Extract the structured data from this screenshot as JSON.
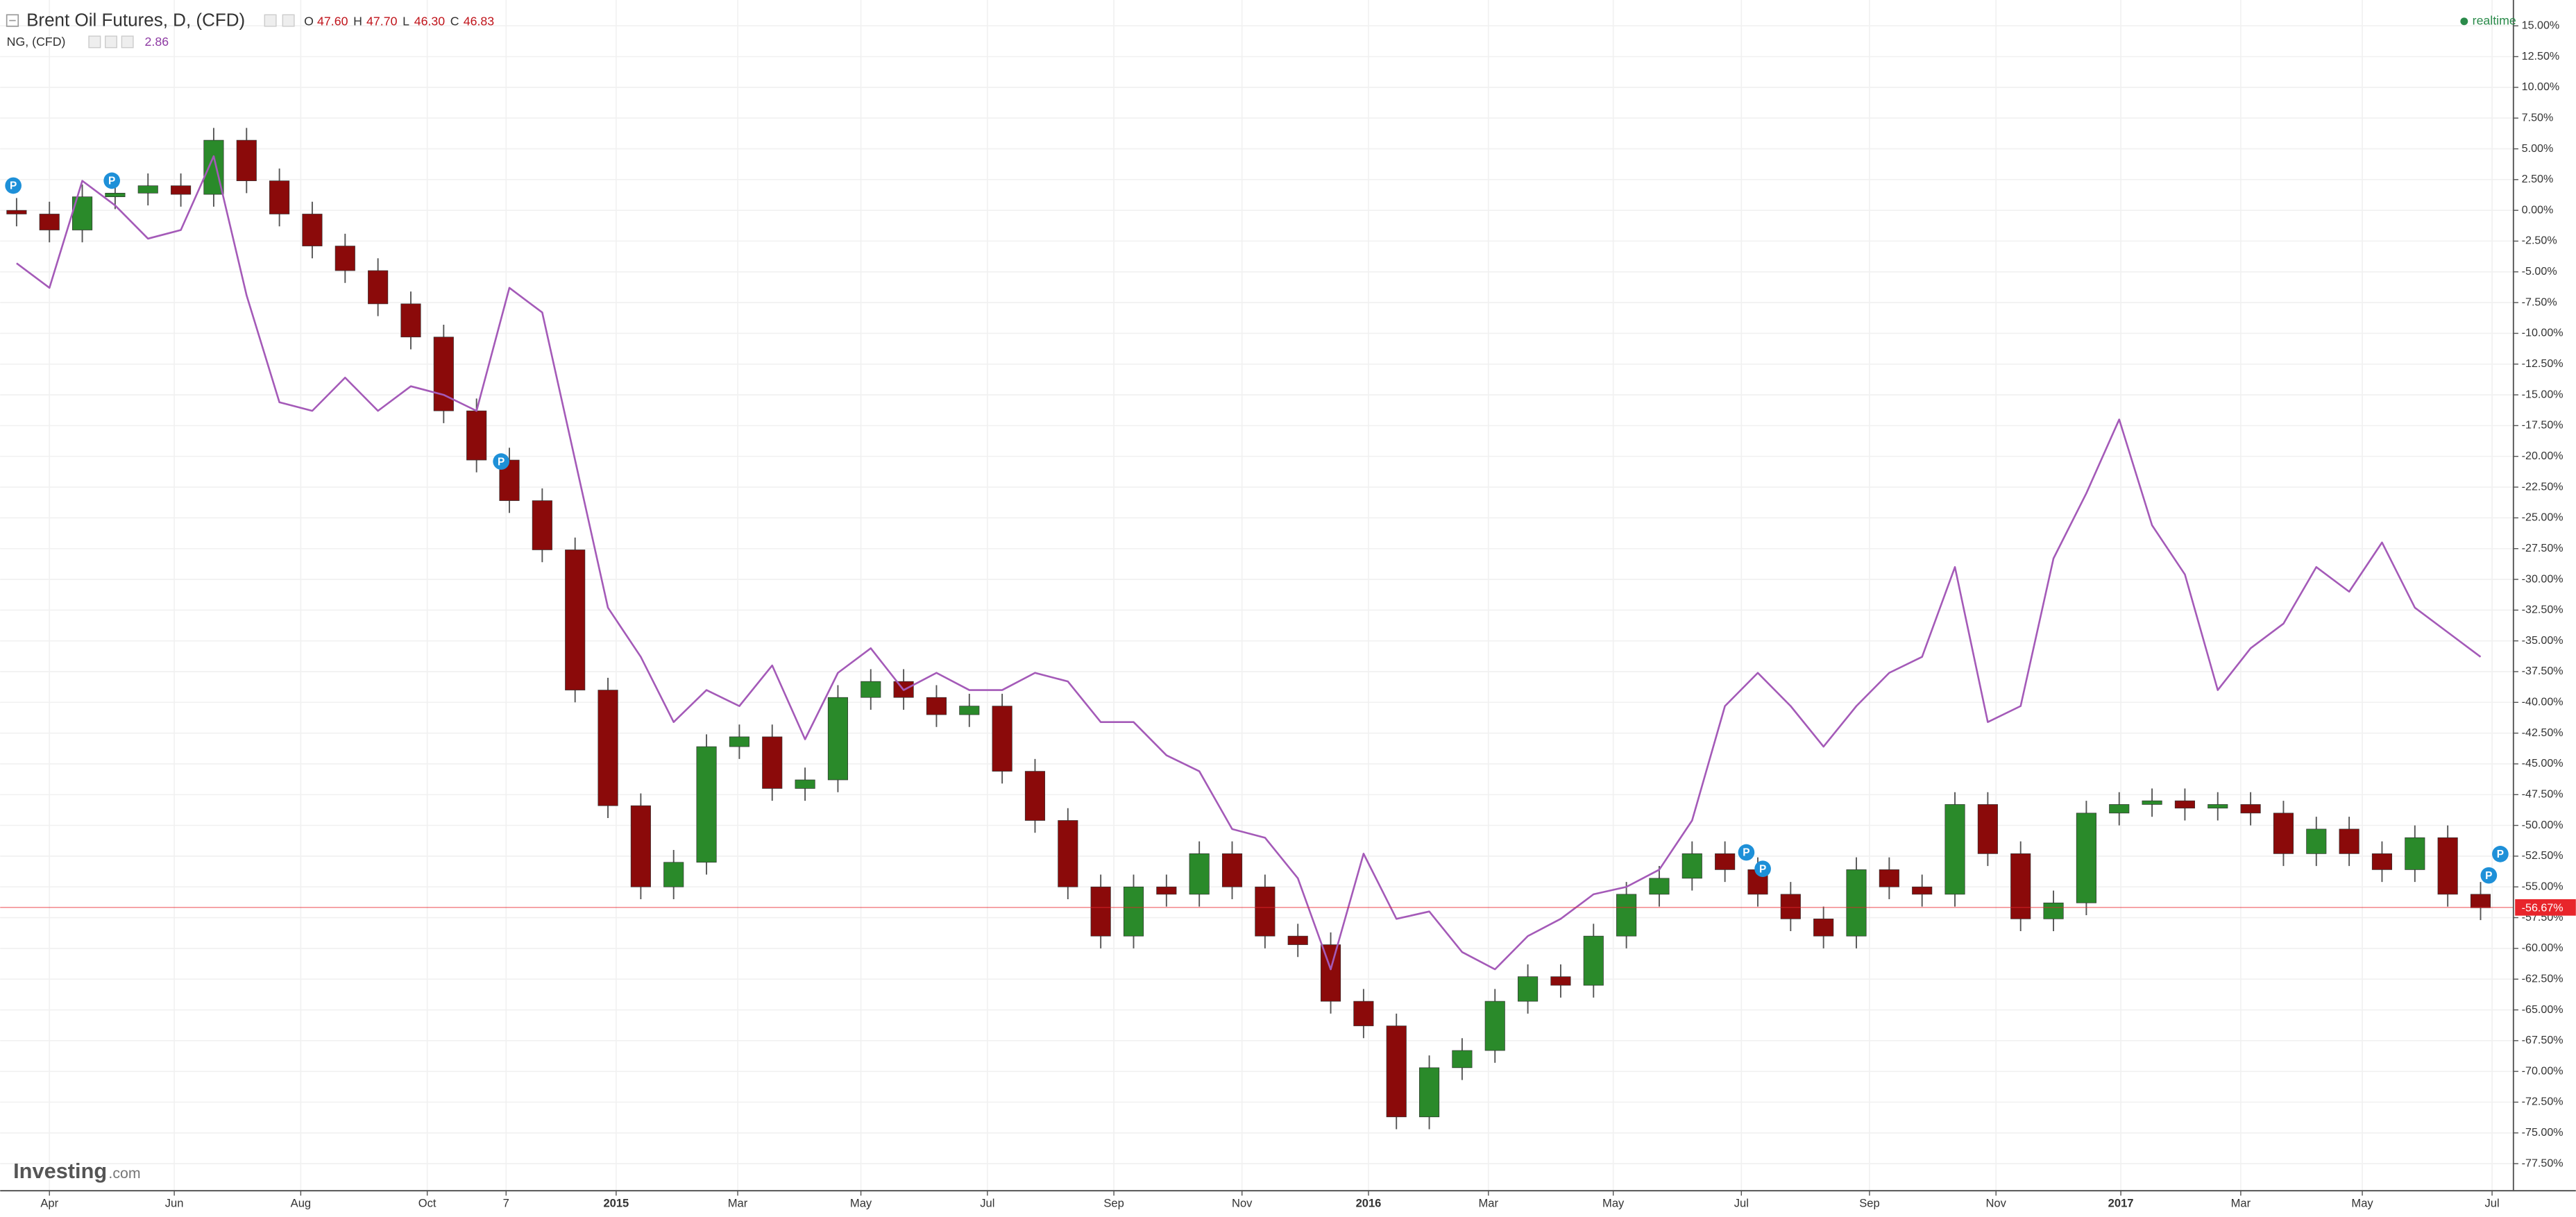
{
  "chart_data": {
    "type": "candlestick",
    "title": "Brent Oil Futures, D, (CFD)",
    "quote": [
      {
        "label": "O",
        "value": "47.60"
      },
      {
        "label": "H",
        "value": "47.70"
      },
      {
        "label": "L",
        "value": "46.30"
      },
      {
        "label": "C",
        "value": "46.83"
      }
    ],
    "status": "realtime",
    "watermark": [
      "Investing",
      ".com"
    ],
    "event_label": "P",
    "last": {
      "value": -56.67,
      "label": "-56.67%"
    },
    "series": [
      {
        "name": "Brent Oil Futures, D, (CFD)",
        "type": "candlestick",
        "up_color": "#2a8a2a",
        "down_color": "#8b0a0a",
        "open": [
          0.0,
          -0.3,
          -1.6,
          1.1,
          1.4,
          2.0,
          1.3,
          5.7,
          2.4,
          -0.3,
          -2.9,
          -4.9,
          -7.6,
          -10.3,
          -16.3,
          -20.3,
          -23.6,
          -27.6,
          -39.0,
          -48.4,
          -55.0,
          -53.0,
          -43.6,
          -42.8,
          -47.0,
          -46.3,
          -39.6,
          -38.3,
          -39.6,
          -41.0,
          -40.3,
          -45.6,
          -49.6,
          -55.0,
          -59.0,
          -55.0,
          -55.6,
          -52.3,
          -55.0,
          -59.0,
          -59.7,
          -64.3,
          -66.3,
          -73.7,
          -69.7,
          -68.3,
          -64.3,
          -62.3,
          -63.0,
          -59.0,
          -55.6,
          -54.3,
          -52.3,
          -53.6,
          -55.6,
          -57.6,
          -59.0,
          -53.6,
          -55.0,
          -55.6,
          -48.3,
          -52.3,
          -57.6,
          -56.3,
          -49.0,
          -48.3,
          -48.0,
          -48.6,
          -48.3,
          -49.0,
          -52.3,
          -50.3,
          -52.3,
          -53.6,
          -51.0,
          -55.6
        ],
        "high": [
          1.0,
          0.7,
          2.1,
          2.4,
          3.0,
          3.0,
          6.7,
          6.7,
          3.4,
          0.7,
          -1.9,
          -3.9,
          -6.6,
          -9.3,
          -15.3,
          -19.3,
          -22.6,
          -26.6,
          -38.0,
          -47.4,
          -52.0,
          -42.6,
          -41.8,
          -41.8,
          -45.3,
          -38.6,
          -37.3,
          -37.3,
          -38.6,
          -39.3,
          -39.3,
          -44.6,
          -48.6,
          -54.0,
          -54.0,
          -54.0,
          -51.3,
          -51.3,
          -54.0,
          -58.0,
          -58.7,
          -63.3,
          -65.3,
          -68.7,
          -67.3,
          -63.3,
          -61.3,
          -61.3,
          -58.0,
          -54.6,
          -53.3,
          -51.3,
          -51.3,
          -52.6,
          -54.6,
          -56.6,
          -52.6,
          -52.6,
          -54.0,
          -47.3,
          -47.3,
          -51.3,
          -55.3,
          -48.0,
          -47.3,
          -47.0,
          -47.0,
          -47.3,
          -47.3,
          -48.0,
          -49.3,
          -49.3,
          -51.3,
          -50.0,
          -50.0,
          -54.6
        ],
        "low": [
          -1.3,
          -2.6,
          -2.6,
          0.1,
          0.4,
          0.3,
          0.3,
          1.4,
          -1.3,
          -3.9,
          -5.9,
          -8.6,
          -11.3,
          -17.3,
          -21.3,
          -24.6,
          -28.6,
          -40.0,
          -49.4,
          -56.0,
          -56.0,
          -54.0,
          -44.6,
          -48.0,
          -48.0,
          -47.3,
          -40.6,
          -40.6,
          -42.0,
          -42.0,
          -46.6,
          -50.6,
          -56.0,
          -60.0,
          -60.0,
          -56.6,
          -56.6,
          -56.0,
          -60.0,
          -60.7,
          -65.3,
          -67.3,
          -74.7,
          -74.7,
          -70.7,
          -69.3,
          -65.3,
          -64.0,
          -64.0,
          -60.0,
          -56.6,
          -55.3,
          -54.6,
          -56.6,
          -58.6,
          -60.0,
          -60.0,
          -56.0,
          -56.6,
          -56.6,
          -53.3,
          -58.6,
          -58.6,
          -57.3,
          -50.0,
          -49.3,
          -49.6,
          -49.6,
          -50.0,
          -53.3,
          -53.3,
          -53.3,
          -54.6,
          -54.6,
          -56.6,
          -57.7
        ],
        "close": [
          -0.3,
          -1.6,
          1.1,
          1.4,
          2.0,
          1.3,
          5.7,
          2.4,
          -0.3,
          -2.9,
          -4.9,
          -7.6,
          -10.3,
          -16.3,
          -20.3,
          -23.6,
          -27.6,
          -39.0,
          -48.4,
          -55.0,
          -53.0,
          -43.6,
          -42.8,
          -47.0,
          -46.3,
          -39.6,
          -38.3,
          -39.6,
          -41.0,
          -40.3,
          -45.6,
          -49.6,
          -55.0,
          -59.0,
          -55.0,
          -55.6,
          -52.3,
          -55.0,
          -59.0,
          -59.7,
          -64.3,
          -66.3,
          -73.7,
          -69.7,
          -68.3,
          -64.3,
          -62.3,
          -63.0,
          -59.0,
          -55.6,
          -54.3,
          -52.3,
          -53.6,
          -55.6,
          -57.6,
          -59.0,
          -53.6,
          -55.0,
          -55.6,
          -48.3,
          -52.3,
          -57.6,
          -56.3,
          -49.0,
          -48.3,
          -48.0,
          -48.6,
          -48.3,
          -49.0,
          -52.3,
          -50.3,
          -52.3,
          -53.6,
          -51.0,
          -55.6,
          -56.7
        ]
      },
      {
        "name": "NG, (CFD)",
        "type": "line",
        "color": "#a45ab8",
        "last_label": "2.86",
        "values": [
          -4.3,
          -6.3,
          2.4,
          0.4,
          -2.3,
          -1.6,
          4.4,
          -6.9,
          -15.6,
          -16.3,
          -13.6,
          -16.3,
          -14.3,
          -15.0,
          -16.3,
          -6.3,
          -8.3,
          -20.3,
          -32.3,
          -36.3,
          -41.6,
          -39.0,
          -40.3,
          -37.0,
          -43.0,
          -37.6,
          -35.6,
          -39.0,
          -37.6,
          -39.0,
          -39.0,
          -37.6,
          -38.3,
          -41.6,
          -41.6,
          -44.3,
          -45.6,
          -50.3,
          -51.0,
          -54.3,
          -61.7,
          -52.3,
          -57.6,
          -57.0,
          -60.3,
          -61.7,
          -59.0,
          -57.6,
          -55.6,
          -55.0,
          -53.6,
          -49.6,
          -40.3,
          -37.6,
          -40.3,
          -43.6,
          -40.3,
          -37.6,
          -36.3,
          -29.0,
          -41.6,
          -40.3,
          -28.3,
          -23.0,
          -17.0,
          -25.6,
          -29.6,
          -39.0,
          -35.6,
          -33.6,
          -29.0,
          -31.0,
          -27.0,
          -32.3,
          -34.3,
          -36.3
        ]
      }
    ],
    "xlim": [
      -0.5,
      76
    ],
    "xticks": [
      {
        "value": 1,
        "label": "Apr"
      },
      {
        "value": 4.8,
        "label": "Jun"
      },
      {
        "value": 8.65,
        "label": "Aug"
      },
      {
        "value": 12.5,
        "label": "Oct"
      },
      {
        "value": 14.9,
        "label": "7"
      },
      {
        "value": 18.25,
        "label": "2015"
      },
      {
        "value": 21.95,
        "label": "Mar"
      },
      {
        "value": 25.7,
        "label": "May"
      },
      {
        "value": 29.55,
        "label": "Jul"
      },
      {
        "value": 33.4,
        "label": "Sep"
      },
      {
        "value": 37.3,
        "label": "Nov"
      },
      {
        "value": 41.15,
        "label": "2016"
      },
      {
        "value": 44.8,
        "label": "Mar"
      },
      {
        "value": 48.6,
        "label": "May"
      },
      {
        "value": 52.5,
        "label": "Jul"
      },
      {
        "value": 56.4,
        "label": "Sep"
      },
      {
        "value": 60.25,
        "label": "Nov"
      },
      {
        "value": 64.05,
        "label": "2017"
      },
      {
        "value": 67.7,
        "label": "Mar"
      },
      {
        "value": 71.4,
        "label": "May"
      },
      {
        "value": 75.35,
        "label": "Jul"
      }
    ],
    "ylim": [
      -79.7,
      17.1
    ],
    "yticks": [
      {
        "value": 15,
        "label": "15.00%"
      },
      {
        "value": 12.5,
        "label": "12.50%"
      },
      {
        "value": 10,
        "label": "10.00%"
      },
      {
        "value": 7.5,
        "label": "7.50%"
      },
      {
        "value": 5,
        "label": "5.00%"
      },
      {
        "value": 2.5,
        "label": "2.50%"
      },
      {
        "value": 0,
        "label": "0.00%"
      },
      {
        "value": -2.5,
        "label": "-2.50%"
      },
      {
        "value": -5,
        "label": "-5.00%"
      },
      {
        "value": -7.5,
        "label": "-7.50%"
      },
      {
        "value": -10,
        "label": "-10.00%"
      },
      {
        "value": -12.5,
        "label": "-12.50%"
      },
      {
        "value": -15,
        "label": "-15.00%"
      },
      {
        "value": -17.5,
        "label": "-17.50%"
      },
      {
        "value": -20,
        "label": "-20.00%"
      },
      {
        "value": -22.5,
        "label": "-22.50%"
      },
      {
        "value": -25,
        "label": "-25.00%"
      },
      {
        "value": -27.5,
        "label": "-27.50%"
      },
      {
        "value": -30,
        "label": "-30.00%"
      },
      {
        "value": -32.5,
        "label": "-32.50%"
      },
      {
        "value": -35,
        "label": "-35.00%"
      },
      {
        "value": -37.5,
        "label": "-37.50%"
      },
      {
        "value": -40,
        "label": "-40.00%"
      },
      {
        "value": -42.5,
        "label": "-42.50%"
      },
      {
        "value": -45,
        "label": "-45.00%"
      },
      {
        "value": -47.5,
        "label": "-47.50%"
      },
      {
        "value": -50,
        "label": "-50.00%"
      },
      {
        "value": -52.5,
        "label": "-52.50%"
      },
      {
        "value": -55,
        "label": "-55.00%"
      },
      {
        "value": -57.5,
        "label": "-57.50%"
      },
      {
        "value": -60,
        "label": "-60.00%"
      },
      {
        "value": -62.5,
        "label": "-62.50%"
      },
      {
        "value": -65,
        "label": "-65.00%"
      },
      {
        "value": -67.5,
        "label": "-67.50%"
      },
      {
        "value": -70,
        "label": "-70.00%"
      },
      {
        "value": -72.5,
        "label": "-72.50%"
      },
      {
        "value": -75,
        "label": "-75.00%"
      },
      {
        "value": -77.5,
        "label": "-77.50%"
      }
    ],
    "grid": true,
    "last_color": "#e8252b"
  }
}
